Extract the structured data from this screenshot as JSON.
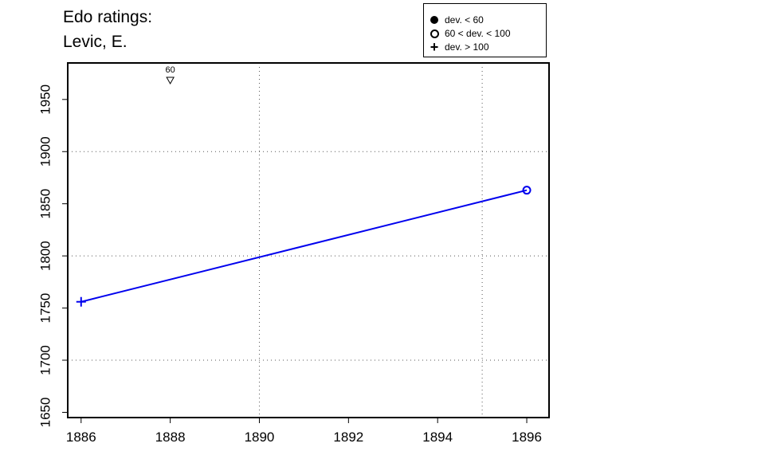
{
  "title_line1": "Edo ratings:",
  "title_line2": "Levic, E.",
  "legend": {
    "position": "top-right",
    "items": [
      {
        "symbol": "filled-circle-icon",
        "label": "dev. < 60"
      },
      {
        "symbol": "open-circle-icon",
        "label": "60 < dev. < 100"
      },
      {
        "symbol": "plus-icon",
        "label": "dev. > 100"
      }
    ]
  },
  "chart_data": {
    "type": "line",
    "xlim": [
      1885.7,
      1896.5
    ],
    "ylim": [
      1645,
      1985
    ],
    "x_ticks": [
      1886,
      1888,
      1890,
      1892,
      1894,
      1896
    ],
    "y_ticks": [
      1650,
      1700,
      1750,
      1800,
      1850,
      1900,
      1950
    ],
    "x_grid": [
      1890,
      1895
    ],
    "y_grid": [
      1700,
      1800,
      1900
    ],
    "series": [
      {
        "color": "#0000ee",
        "points": [
          {
            "x": 1886,
            "y": 1756,
            "marker": "plus"
          },
          {
            "x": 1896,
            "y": 1863,
            "marker": "open-circle"
          }
        ]
      }
    ],
    "annotations": [
      {
        "x": 1888,
        "label": "60",
        "marker": "down-triangle"
      }
    ]
  }
}
